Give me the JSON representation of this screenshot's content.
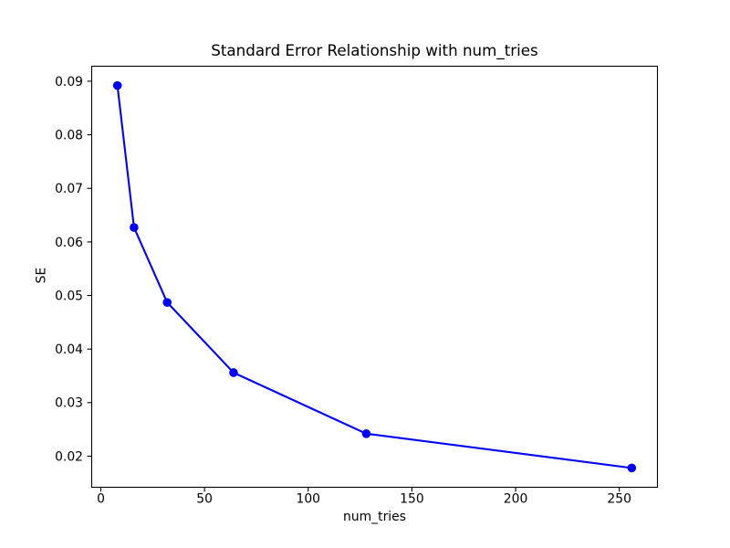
{
  "chart_data": {
    "type": "line",
    "title": "Standard Error Relationship with num_tries",
    "xlabel": "num_tries",
    "ylabel": "SE",
    "x": [
      8,
      16,
      32,
      64,
      128,
      256
    ],
    "y": [
      0.0892,
      0.0627,
      0.0487,
      0.0356,
      0.0242,
      0.0178
    ],
    "xlim": [
      -4.4,
      268.4
    ],
    "ylim": [
      0.0142,
      0.0928
    ],
    "xticks": [
      0,
      50,
      100,
      150,
      200,
      250
    ],
    "xtick_labels": [
      "0",
      "50",
      "100",
      "150",
      "200",
      "250"
    ],
    "yticks": [
      0.02,
      0.03,
      0.04,
      0.05,
      0.06,
      0.07,
      0.08,
      0.09
    ],
    "ytick_labels": [
      "0.02",
      "0.03",
      "0.04",
      "0.05",
      "0.06",
      "0.07",
      "0.08",
      "0.09"
    ],
    "grid": false,
    "legend": null,
    "line_color": "#0000ff",
    "marker": "circle",
    "background_color": "#ffffff",
    "spine_color": "#000000"
  }
}
